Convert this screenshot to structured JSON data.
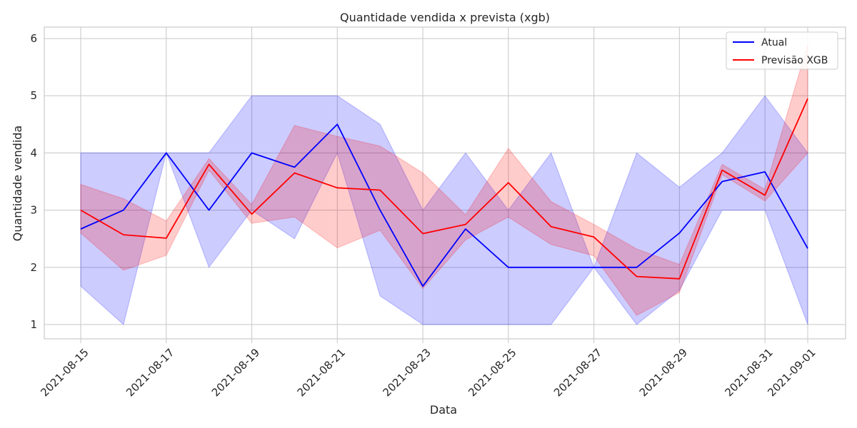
{
  "chart_data": {
    "type": "line",
    "title": "Quantidade vendida x prevista (xgb)",
    "xlabel": "Data",
    "ylabel": "Quantidade vendida",
    "x": [
      "2021-08-15",
      "2021-08-16",
      "2021-08-17",
      "2021-08-18",
      "2021-08-19",
      "2021-08-20",
      "2021-08-21",
      "2021-08-22",
      "2021-08-23",
      "2021-08-24",
      "2021-08-25",
      "2021-08-26",
      "2021-08-27",
      "2021-08-28",
      "2021-08-29",
      "2021-08-30",
      "2021-08-31",
      "2021-09-01"
    ],
    "x_tick_labels": [
      "2021-08-15",
      "2021-08-17",
      "2021-08-19",
      "2021-08-21",
      "2021-08-23",
      "2021-08-25",
      "2021-08-27",
      "2021-08-29",
      "2021-08-31",
      "2021-09-01"
    ],
    "y_ticks": [
      1,
      2,
      3,
      4,
      5,
      6
    ],
    "ylim": [
      0.75,
      6.2
    ],
    "grid": true,
    "legend_position": "top-right",
    "series": [
      {
        "name": "Atual",
        "color": "#0000ff",
        "values": [
          2.67,
          3.0,
          4.0,
          3.0,
          4.0,
          3.75,
          4.5,
          3.0,
          1.67,
          2.67,
          2.0,
          2.0,
          2.0,
          2.0,
          2.6,
          3.5,
          3.67,
          2.33
        ],
        "band_lower": [
          1.67,
          1.0,
          4.0,
          2.0,
          3.0,
          2.5,
          4.0,
          1.5,
          1.0,
          1.0,
          1.0,
          1.0,
          2.0,
          1.0,
          1.6,
          3.0,
          3.0,
          1.0
        ],
        "band_upper": [
          4.0,
          4.0,
          4.0,
          4.0,
          5.0,
          5.0,
          5.0,
          4.5,
          3.0,
          4.0,
          3.0,
          4.0,
          2.0,
          4.0,
          3.4,
          4.0,
          5.0,
          4.0
        ]
      },
      {
        "name": "Previsão XGB",
        "color": "#ff0000",
        "values": [
          3.0,
          2.57,
          2.51,
          3.8,
          2.93,
          3.65,
          3.39,
          3.35,
          2.59,
          2.75,
          3.48,
          2.71,
          2.53,
          1.84,
          1.8,
          3.7,
          3.26,
          4.95
        ],
        "band_lower": [
          2.6,
          1.95,
          2.21,
          3.7,
          2.77,
          2.88,
          2.34,
          2.65,
          1.63,
          2.48,
          2.88,
          2.4,
          2.2,
          1.16,
          1.56,
          3.62,
          3.16,
          4.0
        ],
        "band_upper": [
          3.45,
          3.2,
          2.81,
          3.9,
          3.1,
          4.48,
          4.29,
          4.12,
          3.65,
          2.92,
          4.08,
          3.15,
          2.75,
          2.32,
          2.05,
          3.8,
          3.36,
          5.9
        ]
      }
    ]
  }
}
